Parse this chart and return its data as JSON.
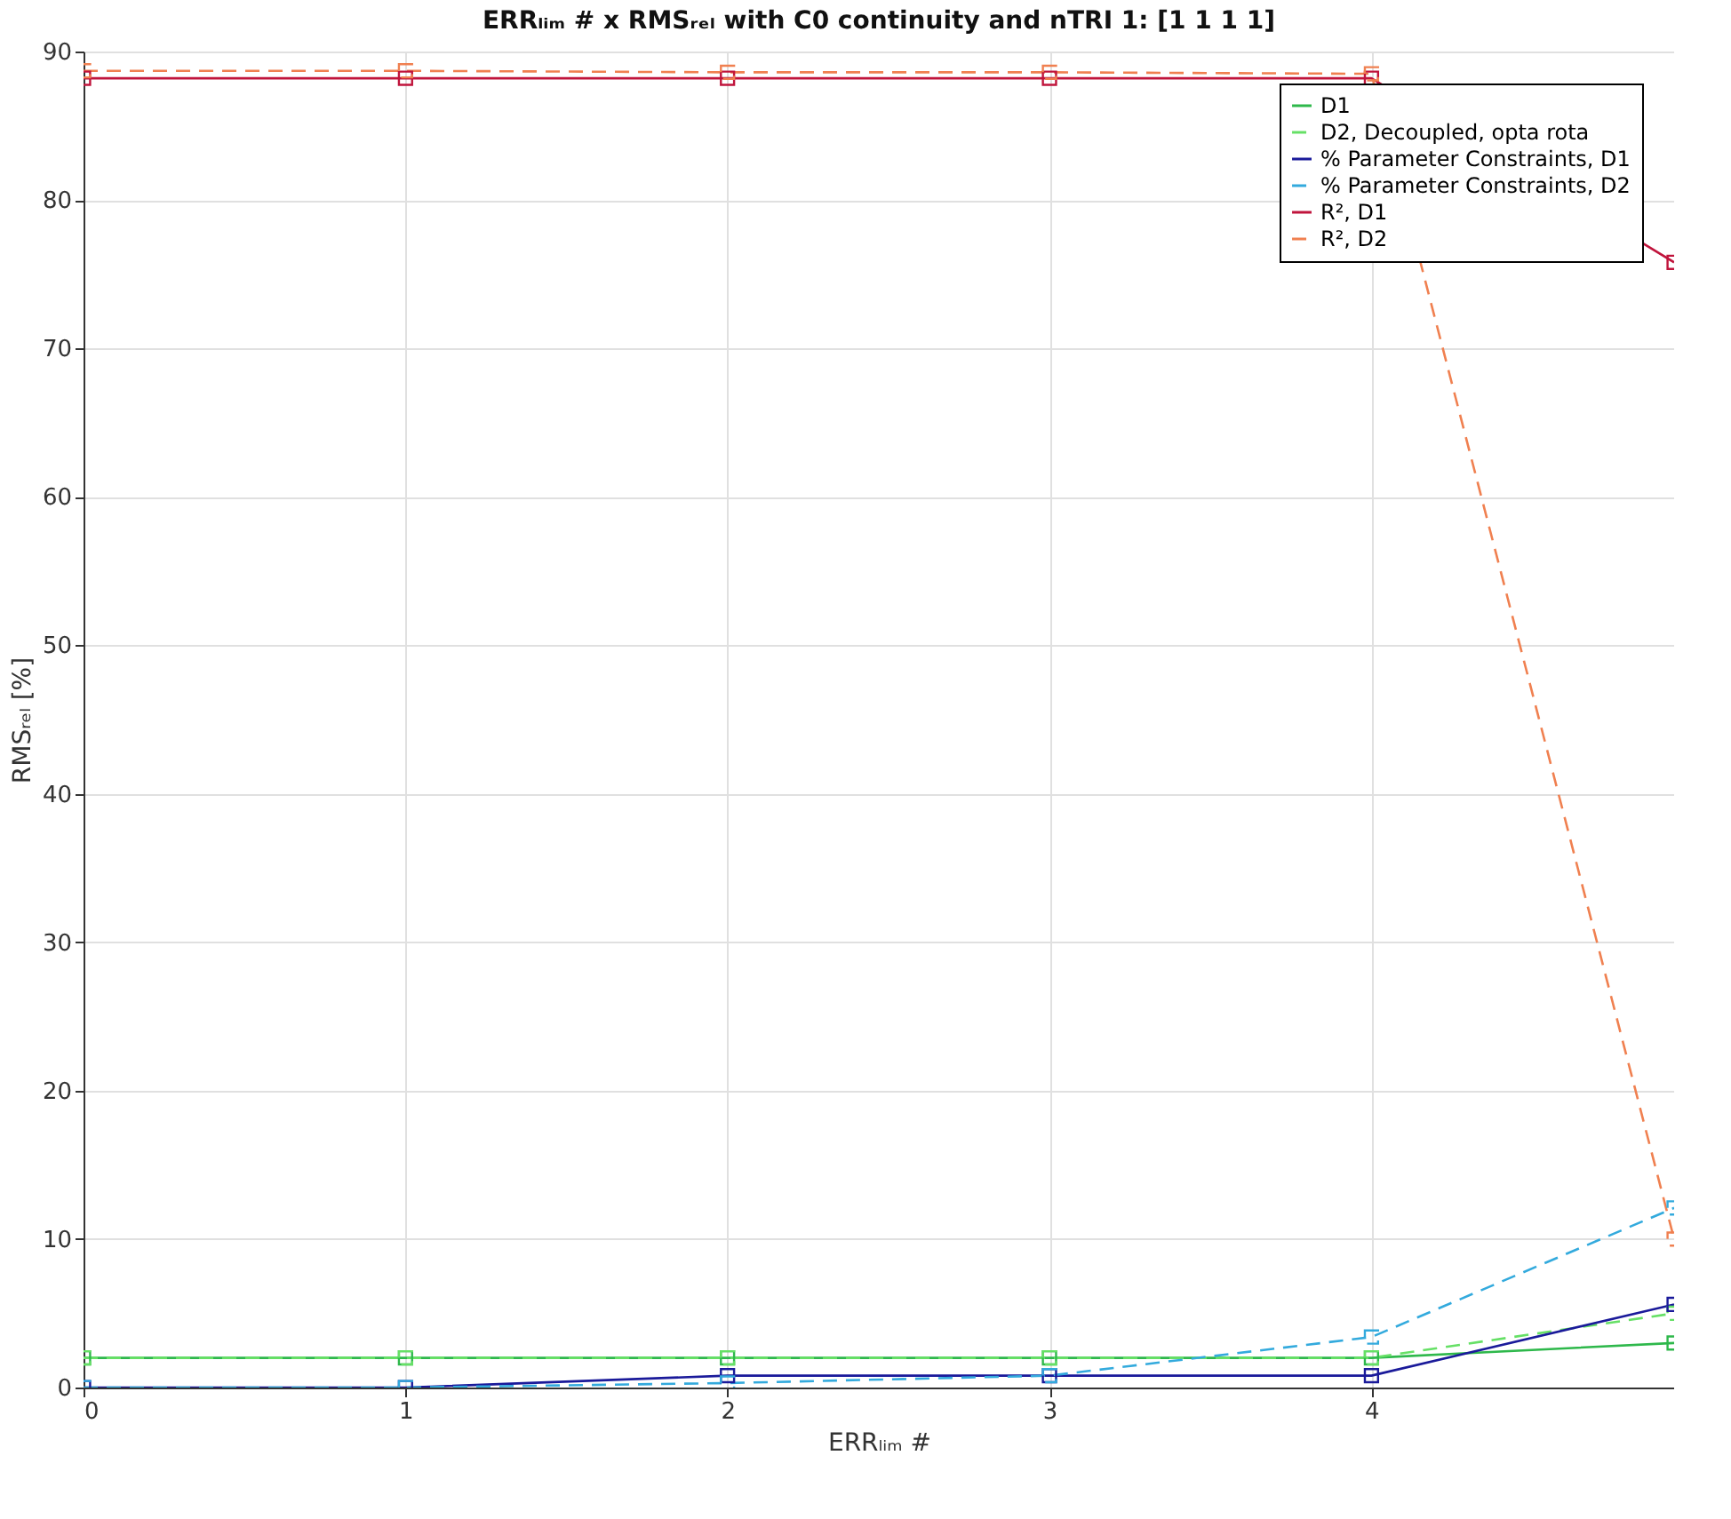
{
  "chart_data": {
    "type": "line",
    "title": "ERRₗᵢₘ # x RMSᵣₑₗ with C0 continuity and nTRI 1: [1 1 1 1]",
    "xlabel": "ERRₗᵢₘ #",
    "ylabel": "RMSᵣₑₗ [%]",
    "x": [
      0,
      1,
      2,
      3,
      4,
      4.94
    ],
    "series": [
      {
        "name": "D1",
        "color": "#2eb84b",
        "line_style": "solid",
        "values": [
          2,
          2,
          2,
          2,
          2,
          3.0
        ]
      },
      {
        "name": "D2, Decoupled, opta rota",
        "color": "#66e066",
        "line_style": "dashed",
        "values": [
          2,
          2,
          2,
          2,
          2,
          5.0
        ]
      },
      {
        "name": "% Parameter Constraints, D1",
        "color": "#1a1a9a",
        "line_style": "solid",
        "values": [
          0,
          0,
          0.8,
          0.8,
          0.8,
          5.6
        ]
      },
      {
        "name": "% Parameter Constraints, D2",
        "color": "#33aadd",
        "line_style": "dashed",
        "values": [
          0,
          0,
          0.3,
          0.8,
          3.4,
          12.1
        ]
      },
      {
        "name": "R², D1",
        "color": "#c0143c",
        "line_style": "solid",
        "values": [
          88.2,
          88.2,
          88.2,
          88.2,
          88.2,
          75.8
        ]
      },
      {
        "name": "R², D2",
        "color": "#f08050",
        "line_style": "dashed",
        "values": [
          88.7,
          88.7,
          88.6,
          88.6,
          88.5,
          10.0
        ]
      }
    ],
    "xlim": [
      0,
      4.94
    ],
    "xticks": [
      0,
      1,
      2,
      3,
      4
    ],
    "ylim": [
      0,
      90
    ],
    "yticks": [
      0,
      10,
      20,
      30,
      40,
      50,
      60,
      70,
      80,
      90
    ],
    "grid": true,
    "legend": "top right",
    "marker": "square"
  }
}
